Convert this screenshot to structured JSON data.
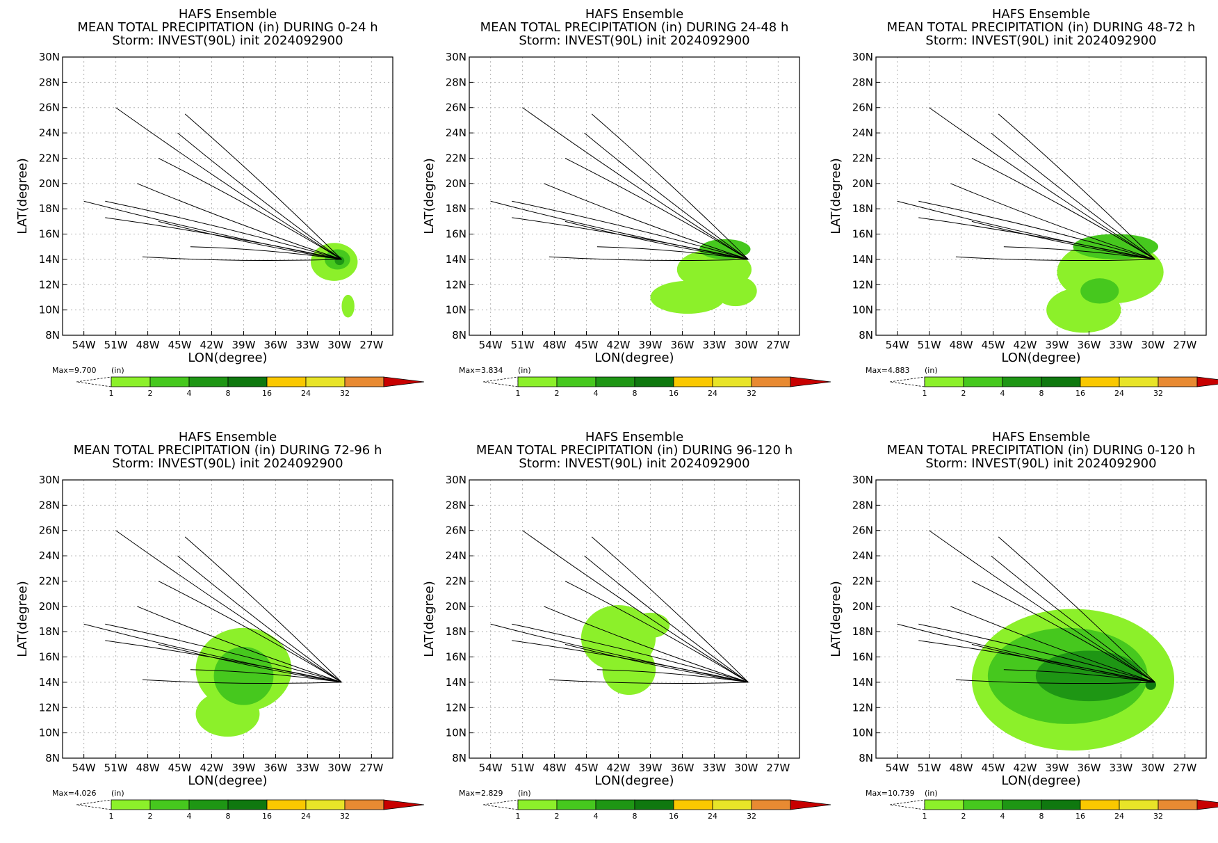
{
  "figure": {
    "title_line1": "HAFS Ensemble",
    "title_line3": "Storm: INVEST(90L) init 2024092900",
    "xlabel": "LON(degree)",
    "ylabel": "LAT(degree)",
    "units_label": "(in)",
    "x_tick_labels": [
      "54W",
      "51W",
      "48W",
      "45W",
      "42W",
      "39W",
      "36W",
      "33W",
      "30W",
      "27W"
    ],
    "y_tick_labels": [
      "8N",
      "10N",
      "12N",
      "14N",
      "16N",
      "18N",
      "20N",
      "22N",
      "24N",
      "26N",
      "28N",
      "30N"
    ]
  },
  "colorbar": {
    "levels": [
      "1",
      "2",
      "4",
      "8",
      "16",
      "24",
      "32"
    ],
    "colors": [
      "#8cf02a",
      "#46c81e",
      "#1e9614",
      "#0f780f",
      "#fac800",
      "#e8e428",
      "#e88a32",
      "#c80000"
    ]
  },
  "chart_data": [
    {
      "type": "heatmap",
      "title": "MEAN TOTAL PRECIPITATION (in) DURING  0-24 h",
      "max_label": "Max=9.700",
      "period": "0-24 h",
      "xlim": [
        -56,
        -25
      ],
      "ylim": [
        8,
        30
      ],
      "track_origin": [
        -29.8,
        14.0
      ],
      "tracks": [
        [
          -51,
          26
        ],
        [
          -44.5,
          25.5
        ],
        [
          -45.2,
          24
        ],
        [
          -47,
          22
        ],
        [
          -49,
          20
        ],
        [
          -52,
          18.6
        ],
        [
          -54,
          18.6
        ],
        [
          -52,
          17.3
        ],
        [
          -47,
          17
        ],
        [
          -44,
          15
        ],
        [
          -48.5,
          14.2
        ]
      ],
      "rain": [
        {
          "lon": -30.5,
          "lat": 13.8,
          "rlon": 2.2,
          "rlat": 1.5,
          "level": 1
        },
        {
          "lon": -30.2,
          "lat": 14.0,
          "rlon": 1.2,
          "rlat": 0.8,
          "level": 2
        },
        {
          "lon": -30.0,
          "lat": 13.9,
          "rlon": 0.45,
          "rlat": 0.35,
          "level": 3
        },
        {
          "lon": -29.2,
          "lat": 10.3,
          "rlon": 0.6,
          "rlat": 0.9,
          "level": 1
        }
      ]
    },
    {
      "type": "heatmap",
      "title": "MEAN TOTAL PRECIPITATION (in) DURING 24-48 h",
      "max_label": "Max=3.834",
      "period": "24-48 h",
      "xlim": [
        -56,
        -25
      ],
      "ylim": [
        8,
        30
      ],
      "track_origin": [
        -29.8,
        14.0
      ],
      "tracks": [
        [
          -51,
          26
        ],
        [
          -44.5,
          25.5
        ],
        [
          -45.2,
          24
        ],
        [
          -47,
          22
        ],
        [
          -49,
          20
        ],
        [
          -52,
          18.6
        ],
        [
          -54,
          18.6
        ],
        [
          -52,
          17.3
        ],
        [
          -47,
          17
        ],
        [
          -44,
          15
        ],
        [
          -48.5,
          14.2
        ]
      ],
      "rain": [
        {
          "lon": -33.0,
          "lat": 13.2,
          "rlon": 3.5,
          "rlat": 1.6,
          "level": 1
        },
        {
          "lon": -35.5,
          "lat": 11.0,
          "rlon": 3.5,
          "rlat": 1.3,
          "level": 1
        },
        {
          "lon": -31.0,
          "lat": 11.5,
          "rlon": 2.0,
          "rlat": 1.2,
          "level": 1
        },
        {
          "lon": -32.0,
          "lat": 14.8,
          "rlon": 2.4,
          "rlat": 0.8,
          "level": 2
        }
      ]
    },
    {
      "type": "heatmap",
      "title": "MEAN TOTAL PRECIPITATION (in) DURING 48-72 h",
      "max_label": "Max=4.883",
      "period": "48-72 h",
      "xlim": [
        -56,
        -25
      ],
      "ylim": [
        8,
        30
      ],
      "track_origin": [
        -29.8,
        14.0
      ],
      "tracks": [
        [
          -51,
          26
        ],
        [
          -44.5,
          25.5
        ],
        [
          -45.2,
          24
        ],
        [
          -47,
          22
        ],
        [
          -49,
          20
        ],
        [
          -52,
          18.6
        ],
        [
          -54,
          18.6
        ],
        [
          -52,
          17.3
        ],
        [
          -47,
          17
        ],
        [
          -44,
          15
        ],
        [
          -48.5,
          14.2
        ]
      ],
      "rain": [
        {
          "lon": -34.0,
          "lat": 13.0,
          "rlon": 5.0,
          "rlat": 2.5,
          "level": 1
        },
        {
          "lon": -36.5,
          "lat": 10.0,
          "rlon": 3.5,
          "rlat": 1.8,
          "level": 1
        },
        {
          "lon": -33.5,
          "lat": 15.0,
          "rlon": 4.0,
          "rlat": 1.0,
          "level": 2
        },
        {
          "lon": -35.0,
          "lat": 11.5,
          "rlon": 1.8,
          "rlat": 1.0,
          "level": 2
        }
      ]
    },
    {
      "type": "heatmap",
      "title": "MEAN TOTAL PRECIPITATION (in) DURING 72-96 h",
      "max_label": "Max=4.026",
      "period": "72-96 h",
      "xlim": [
        -56,
        -25
      ],
      "ylim": [
        8,
        30
      ],
      "track_origin": [
        -29.8,
        14.0
      ],
      "tracks": [
        [
          -51,
          26
        ],
        [
          -44.5,
          25.5
        ],
        [
          -45.2,
          24
        ],
        [
          -47,
          22
        ],
        [
          -49,
          20
        ],
        [
          -52,
          18.6
        ],
        [
          -54,
          18.6
        ],
        [
          -52,
          17.3
        ],
        [
          -47,
          17
        ],
        [
          -44,
          15
        ],
        [
          -48.5,
          14.2
        ]
      ],
      "rain": [
        {
          "lon": -39.0,
          "lat": 15.0,
          "rlon": 4.5,
          "rlat": 3.3,
          "level": 1
        },
        {
          "lon": -40.5,
          "lat": 11.5,
          "rlon": 3.0,
          "rlat": 1.8,
          "level": 1
        },
        {
          "lon": -39.0,
          "lat": 14.5,
          "rlon": 2.8,
          "rlat": 2.3,
          "level": 2
        }
      ]
    },
    {
      "type": "heatmap",
      "title": "MEAN TOTAL PRECIPITATION (in) DURING 96-120 h",
      "max_label": "Max=2.829",
      "period": "96-120 h",
      "xlim": [
        -56,
        -25
      ],
      "ylim": [
        8,
        30
      ],
      "track_origin": [
        -29.8,
        14.0
      ],
      "tracks": [
        [
          -51,
          26
        ],
        [
          -44.5,
          25.5
        ],
        [
          -45.2,
          24
        ],
        [
          -47,
          22
        ],
        [
          -49,
          20
        ],
        [
          -52,
          18.6
        ],
        [
          -54,
          18.6
        ],
        [
          -52,
          17.3
        ],
        [
          -47,
          17
        ],
        [
          -44,
          15
        ],
        [
          -48.5,
          14.2
        ]
      ],
      "rain": [
        {
          "lon": -42.0,
          "lat": 17.5,
          "rlon": 3.5,
          "rlat": 2.6,
          "level": 1
        },
        {
          "lon": -41.0,
          "lat": 15.0,
          "rlon": 2.5,
          "rlat": 2.0,
          "level": 1
        },
        {
          "lon": -39.0,
          "lat": 18.5,
          "rlon": 1.8,
          "rlat": 1.0,
          "level": 1
        }
      ]
    },
    {
      "type": "heatmap",
      "title": "MEAN TOTAL PRECIPITATION (in) DURING 0-120 h",
      "max_label": "Max=10.739",
      "period": "0-120 h",
      "xlim": [
        -56,
        -25
      ],
      "ylim": [
        8,
        30
      ],
      "track_origin": [
        -29.8,
        14.0
      ],
      "tracks": [
        [
          -51,
          26
        ],
        [
          -44.5,
          25.5
        ],
        [
          -45.2,
          24
        ],
        [
          -47,
          22
        ],
        [
          -49,
          20
        ],
        [
          -52,
          18.6
        ],
        [
          -54,
          18.6
        ],
        [
          -52,
          17.3
        ],
        [
          -47,
          17
        ],
        [
          -44,
          15
        ],
        [
          -48.5,
          14.2
        ]
      ],
      "rain": [
        {
          "lon": -37.5,
          "lat": 14.2,
          "rlon": 9.5,
          "rlat": 5.6,
          "level": 1
        },
        {
          "lon": -38.0,
          "lat": 14.5,
          "rlon": 7.5,
          "rlat": 3.8,
          "level": 2
        },
        {
          "lon": -36.0,
          "lat": 14.5,
          "rlon": 5.0,
          "rlat": 2.0,
          "level": 3
        },
        {
          "lon": -30.2,
          "lat": 13.8,
          "rlon": 0.5,
          "rlat": 0.4,
          "level": 4
        }
      ]
    }
  ]
}
